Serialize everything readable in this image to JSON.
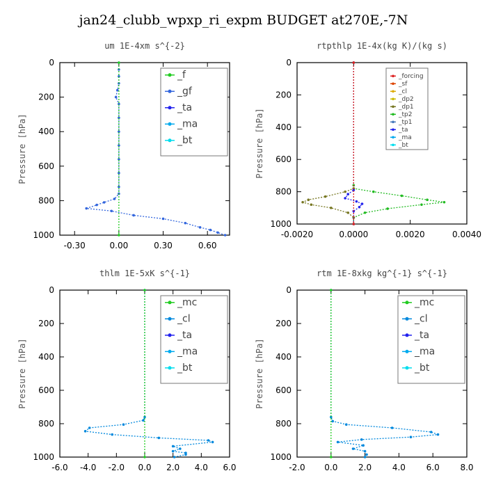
{
  "title": "jan24_clubb_wpxp_ri_expm  BUDGET at270E,-7N",
  "colors": {
    "f": "#22cc22",
    "gf": "#3366dd",
    "ta": "#2222ee",
    "ma": "#00aaee",
    "bt": "#00ddee",
    "forcing": "#dd2222",
    "sf": "#dd4400",
    "cl": "#ddaa00",
    "dp2": "#ccbb00",
    "dp1": "#777722",
    "tp2": "#22bb22",
    "tp1": "#4477bb",
    "mc": "#22cc22",
    "cl_blue": "#0088dd"
  },
  "chart_data": [
    {
      "type": "line",
      "title": "um   1E-4xm s^{-2}",
      "ylabel": "Pressure [hPa]",
      "xlim": [
        -0.4,
        0.75
      ],
      "ylim": [
        1000,
        0
      ],
      "xticks": [
        "-0.30",
        "0.00",
        "0.30",
        "0.60"
      ],
      "xtick_values": [
        -0.3,
        0.0,
        0.3,
        0.6
      ],
      "yticks": [
        "0",
        "200",
        "400",
        "600",
        "800",
        "1000"
      ],
      "legend": [
        "_f",
        "_gf",
        "_ta",
        "_ma",
        "_bt"
      ],
      "legend_location": "top-right",
      "series": [
        {
          "name": "_gf",
          "color_key": "gf",
          "points": [
            [
              0.0,
              0
            ],
            [
              0.0,
              40
            ],
            [
              0.0,
              80
            ],
            [
              0.0,
              120
            ],
            [
              -0.01,
              160
            ],
            [
              -0.02,
              200
            ],
            [
              0.0,
              240
            ],
            [
              0.0,
              320
            ],
            [
              0.0,
              400
            ],
            [
              0.0,
              480
            ],
            [
              0.0,
              560
            ],
            [
              0.0,
              640
            ],
            [
              0.0,
              720
            ],
            [
              0.0,
              760
            ],
            [
              -0.03,
              790
            ],
            [
              -0.1,
              810
            ],
            [
              -0.15,
              825
            ],
            [
              -0.22,
              845
            ],
            [
              -0.05,
              860
            ],
            [
              0.1,
              885
            ],
            [
              0.3,
              905
            ],
            [
              0.45,
              930
            ],
            [
              0.55,
              955
            ],
            [
              0.62,
              970
            ],
            [
              0.67,
              985
            ],
            [
              0.72,
              1000
            ]
          ]
        },
        {
          "name": "_f",
          "color_key": "f",
          "points": [
            [
              0.0,
              0
            ],
            [
              0.0,
              1000
            ]
          ]
        }
      ]
    },
    {
      "type": "line",
      "title": "rtpthlp   1E-4x(kg K)/(kg s)",
      "ylabel": "Pressure [hPa]",
      "xlim": [
        -0.002,
        0.004
      ],
      "ylim": [
        1000,
        0
      ],
      "xticks": [
        "-0.0020",
        "0.0000",
        "0.0020",
        "0.0040"
      ],
      "xtick_values": [
        -0.002,
        0.0,
        0.002,
        0.004
      ],
      "yticks": [
        "0",
        "200",
        "400",
        "600",
        "800",
        "1000"
      ],
      "legend": [
        "_forcing",
        "_sf",
        "_cl",
        "_dp2",
        "_dp1",
        "_tp2",
        "_tp1",
        "_ta",
        "_ma",
        "_bt"
      ],
      "legend_location": "top-right",
      "series": [
        {
          "name": "_tp2",
          "color_key": "tp2",
          "points": [
            [
              0.0,
              0
            ],
            [
              0.0,
              760
            ],
            [
              0.0,
              780
            ],
            [
              0.0007,
              800
            ],
            [
              0.0017,
              825
            ],
            [
              0.0026,
              850
            ],
            [
              0.0032,
              865
            ],
            [
              0.0024,
              880
            ],
            [
              0.0012,
              905
            ],
            [
              0.0004,
              930
            ],
            [
              0.0,
              960
            ],
            [
              0.0,
              1000
            ]
          ]
        },
        {
          "name": "_dp1",
          "color_key": "dp1",
          "points": [
            [
              0.0,
              0
            ],
            [
              0.0,
              780
            ],
            [
              -0.0003,
              800
            ],
            [
              -0.001,
              830
            ],
            [
              -0.0016,
              850
            ],
            [
              -0.0018,
              865
            ],
            [
              -0.0015,
              880
            ],
            [
              -0.0008,
              900
            ],
            [
              -0.0002,
              930
            ],
            [
              0.0,
              960
            ],
            [
              0.0,
              1000
            ]
          ]
        },
        {
          "name": "_ta",
          "color_key": "ta",
          "points": [
            [
              0.0,
              0
            ],
            [
              0.0,
              790
            ],
            [
              -0.0002,
              815
            ],
            [
              -0.0003,
              840
            ],
            [
              0.0001,
              860
            ],
            [
              0.0003,
              875
            ],
            [
              0.0002,
              895
            ],
            [
              0.0,
              920
            ],
            [
              0.0,
              1000
            ]
          ]
        },
        {
          "name": "_forcing",
          "color_key": "forcing",
          "points": [
            [
              0.0,
              0
            ],
            [
              0.0,
              1000
            ]
          ]
        }
      ]
    },
    {
      "type": "line",
      "title": "thlm   1E-5xK s^{-1}",
      "ylabel": "Pressure [hPa]",
      "xlim": [
        -6.0,
        6.0
      ],
      "ylim": [
        1000,
        0
      ],
      "xticks": [
        "-6.0",
        "-4.0",
        "-2.0",
        "0.0",
        "2.0",
        "4.0",
        "6.0"
      ],
      "xtick_values": [
        -6,
        -4,
        -2,
        0,
        2,
        4,
        6
      ],
      "yticks": [
        "0",
        "200",
        "400",
        "600",
        "800",
        "1000"
      ],
      "legend": [
        "_mc",
        "_cl",
        "_ta",
        "_ma",
        "_bt"
      ],
      "legend_location": "top-right",
      "series": [
        {
          "name": "_cl",
          "color_key": "cl_blue",
          "points": [
            [
              0.0,
              0
            ],
            [
              0.0,
              760
            ],
            [
              -0.1,
              780
            ],
            [
              -1.5,
              805
            ],
            [
              -3.9,
              825
            ],
            [
              -4.2,
              845
            ],
            [
              -2.3,
              865
            ],
            [
              1.0,
              885
            ],
            [
              4.5,
              900
            ],
            [
              4.8,
              910
            ],
            [
              2.0,
              935
            ],
            [
              2.5,
              950
            ],
            [
              2.0,
              965
            ],
            [
              2.9,
              975
            ],
            [
              2.9,
              985
            ],
            [
              2.1,
              1000
            ]
          ]
        },
        {
          "name": "_mc",
          "color_key": "mc",
          "points": [
            [
              0.0,
              0
            ],
            [
              0.0,
              1000
            ]
          ]
        }
      ]
    },
    {
      "type": "line",
      "title": "rtm   1E-8xkg kg^{-1} s^{-1}",
      "ylabel": "Pressure [hPa]",
      "xlim": [
        -2.0,
        8.0
      ],
      "ylim": [
        1000,
        0
      ],
      "xticks": [
        "-2.0",
        "0.0",
        "2.0",
        "4.0",
        "6.0",
        "8.0"
      ],
      "xtick_values": [
        -2,
        0,
        2,
        4,
        6,
        8
      ],
      "yticks": [
        "0",
        "200",
        "400",
        "600",
        "800",
        "1000"
      ],
      "legend": [
        "_mc",
        "_cl",
        "_ta",
        "_ma",
        "_bt"
      ],
      "legend_location": "top-right",
      "series": [
        {
          "name": "_cl",
          "color_key": "cl_blue",
          "points": [
            [
              0.0,
              0
            ],
            [
              0.0,
              760
            ],
            [
              0.1,
              785
            ],
            [
              0.9,
              805
            ],
            [
              3.6,
              825
            ],
            [
              5.9,
              850
            ],
            [
              6.3,
              865
            ],
            [
              4.7,
              880
            ],
            [
              1.8,
              895
            ],
            [
              0.4,
              910
            ],
            [
              1.9,
              930
            ],
            [
              1.3,
              950
            ],
            [
              2.0,
              965
            ],
            [
              2.1,
              985
            ],
            [
              2.0,
              1000
            ]
          ]
        },
        {
          "name": "_mc",
          "color_key": "mc",
          "points": [
            [
              0.0,
              0
            ],
            [
              0.0,
              1000
            ]
          ]
        }
      ]
    }
  ]
}
